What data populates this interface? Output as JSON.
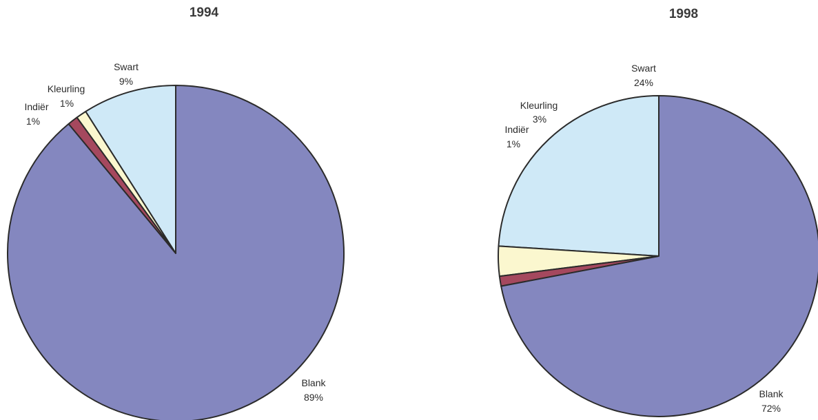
{
  "colors": {
    "Blank": "#8487bf",
    "Swart": "#cfe9f7",
    "Kleurling": "#fbf7cf",
    "Indiër": "#a5485e",
    "outline": "#2b2b2b"
  },
  "chart_data": [
    {
      "type": "pie",
      "title": "1994",
      "slices": [
        {
          "label": "Blank",
          "value": 89,
          "value_label": "89%"
        },
        {
          "label": "Indiër",
          "value": 1,
          "value_label": "1%"
        },
        {
          "label": "Kleurling",
          "value": 1,
          "value_label": "1%"
        },
        {
          "label": "Swart",
          "value": 9,
          "value_label": "9%"
        }
      ]
    },
    {
      "type": "pie",
      "title": "1998",
      "slices": [
        {
          "label": "Blank",
          "value": 72,
          "value_label": "72%"
        },
        {
          "label": "Indiër",
          "value": 1,
          "value_label": "1%"
        },
        {
          "label": "Kleurling",
          "value": 3,
          "value_label": "3%"
        },
        {
          "label": "Swart",
          "value": 24,
          "value_label": "24%"
        }
      ]
    }
  ]
}
